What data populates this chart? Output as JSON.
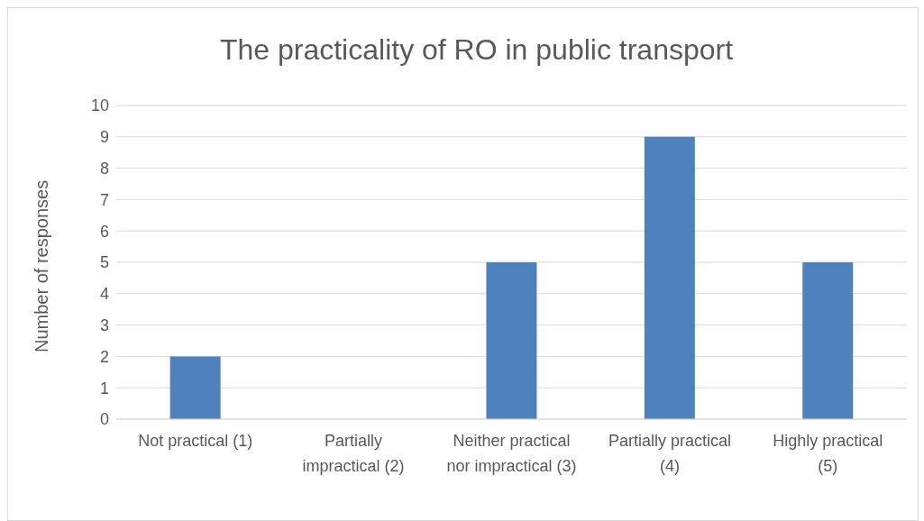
{
  "chart_data": {
    "type": "bar",
    "title": "The practicality of RO in public transport",
    "ylabel": "Number of responses",
    "categories": [
      "Not practical (1)",
      "Partially impractical (2)",
      "Neither practical nor impractical (3)",
      "Partially practical (4)",
      "Highly practical (5)"
    ],
    "values": [
      2,
      0,
      5,
      9,
      5
    ],
    "color": "#4f81bd",
    "ylim": [
      0,
      10
    ],
    "yticks": [
      0,
      1,
      2,
      3,
      4,
      5,
      6,
      7,
      8,
      9,
      10
    ],
    "grid": "y",
    "legend": false
  }
}
